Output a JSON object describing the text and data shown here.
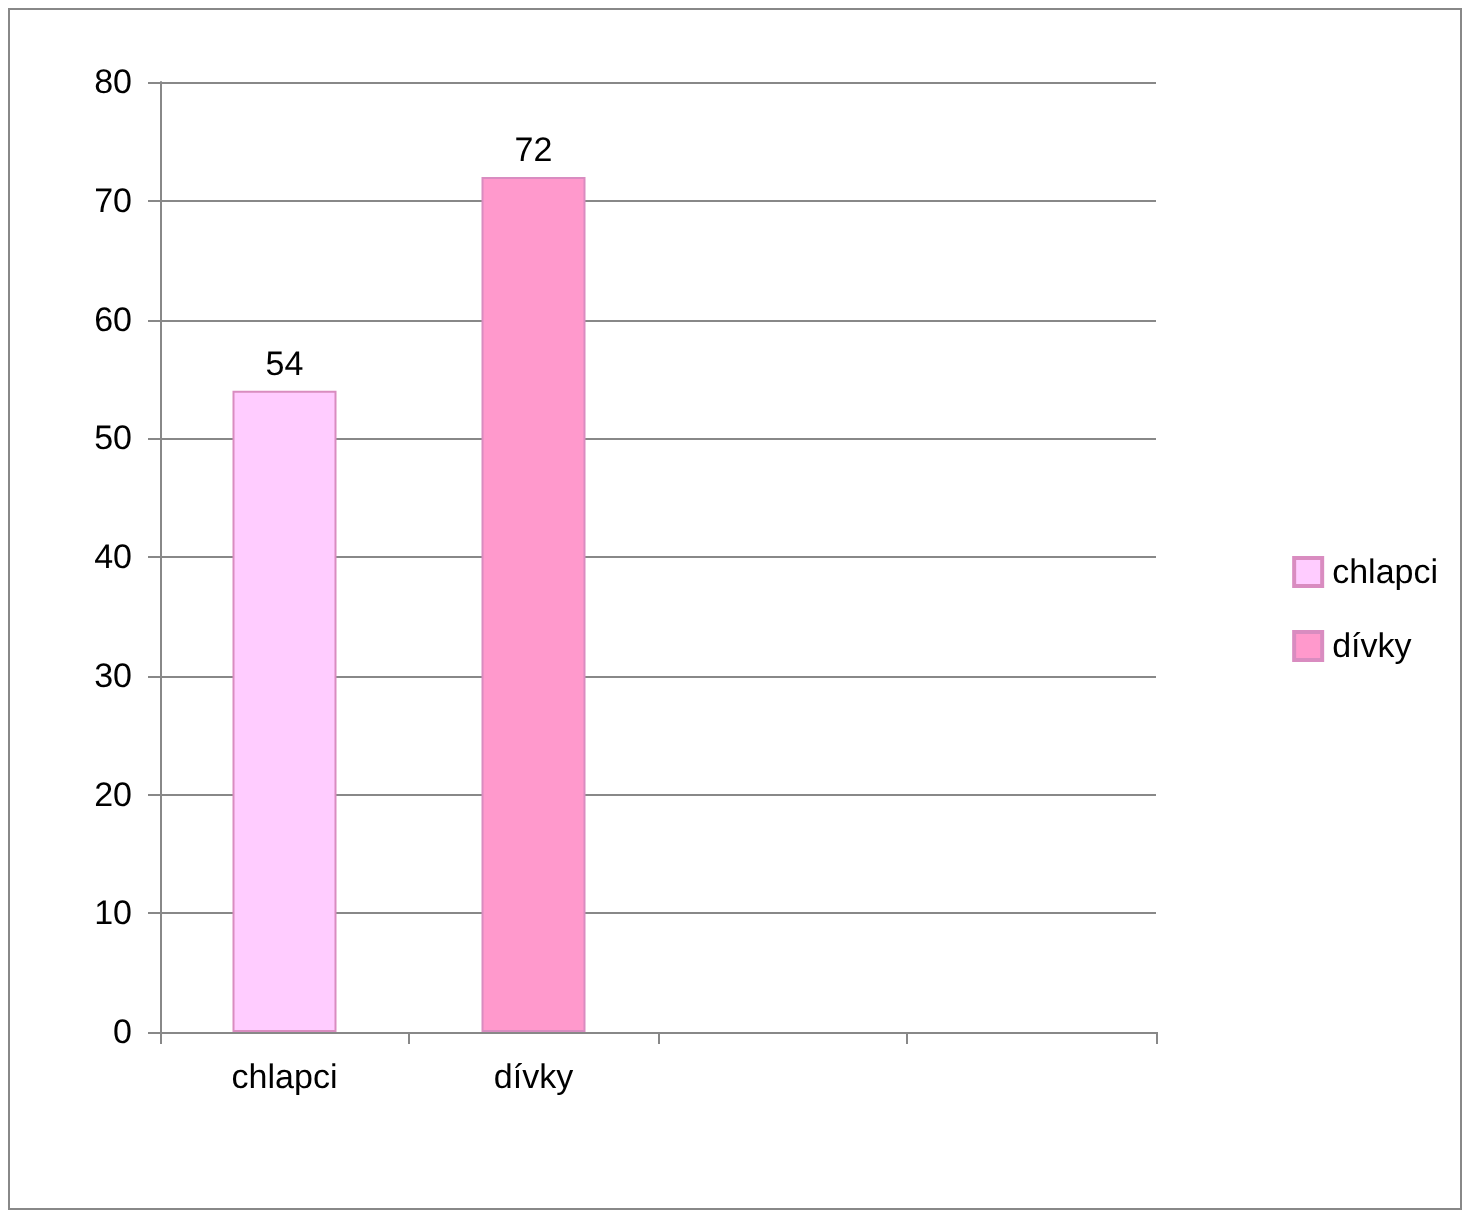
{
  "chart_data": {
    "type": "bar",
    "categories": [
      "chlapci",
      "dívky",
      null,
      null
    ],
    "series": [
      {
        "name": "chlapci",
        "color": "#ffccff",
        "values": [
          54,
          null,
          null,
          null
        ]
      },
      {
        "name": "dívky",
        "color": "#ff99cc",
        "values": [
          null,
          72,
          null,
          null
        ]
      }
    ],
    "ylim": [
      0,
      80
    ],
    "yticks": [
      0,
      10,
      20,
      30,
      40,
      50,
      60,
      70,
      80
    ],
    "grid": "y",
    "legend": "right",
    "data_labels": true
  }
}
